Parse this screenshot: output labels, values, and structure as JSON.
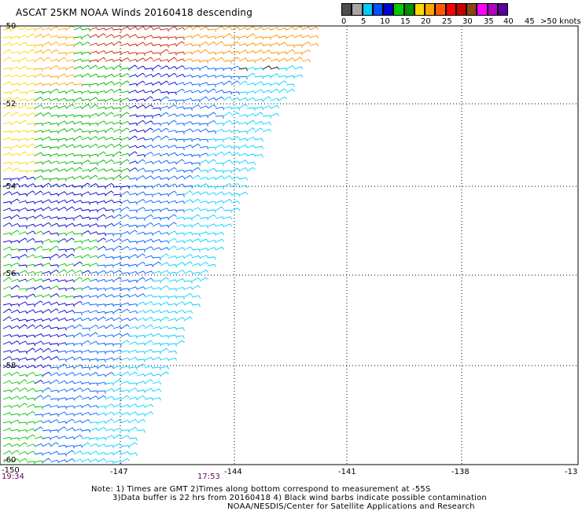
{
  "title": "ASCAT 25KM NOAA Winds 20160418 descending",
  "legend": {
    "colors": [
      "#4d4d4d",
      "#a6a6a6",
      "#00c8ff",
      "#0050ff",
      "#0000d0",
      "#00c800",
      "#008c00",
      "#ffd700",
      "#ffa500",
      "#ff5a00",
      "#ff0000",
      "#c80000",
      "#8b4513",
      "#ff00ff",
      "#b000c0",
      "#5a00a0"
    ],
    "labels": [
      "0",
      "5",
      "10",
      "15",
      "20",
      "25",
      "30",
      "35",
      "40",
      "45",
      ">50 knots"
    ]
  },
  "axes": {
    "lon_ticks": [
      "-150",
      "-147",
      "-144",
      "-141",
      "-138",
      "-13"
    ],
    "lat_ticks": [
      "-50",
      "-52",
      "-54",
      "-56",
      "-58",
      "-60"
    ]
  },
  "times": [
    "19:34",
    "17:53"
  ],
  "notes": {
    "line1": "Note: 1) Times are GMT 2)Times along bottom correspond to measurement at -55S",
    "line2": "3)Data buffer is 22 hrs from 20160418 4) Black wind barbs indicate possible contamination",
    "line3": "NOAA/NESDIS/Center for Satellite Applications and Research"
  }
}
